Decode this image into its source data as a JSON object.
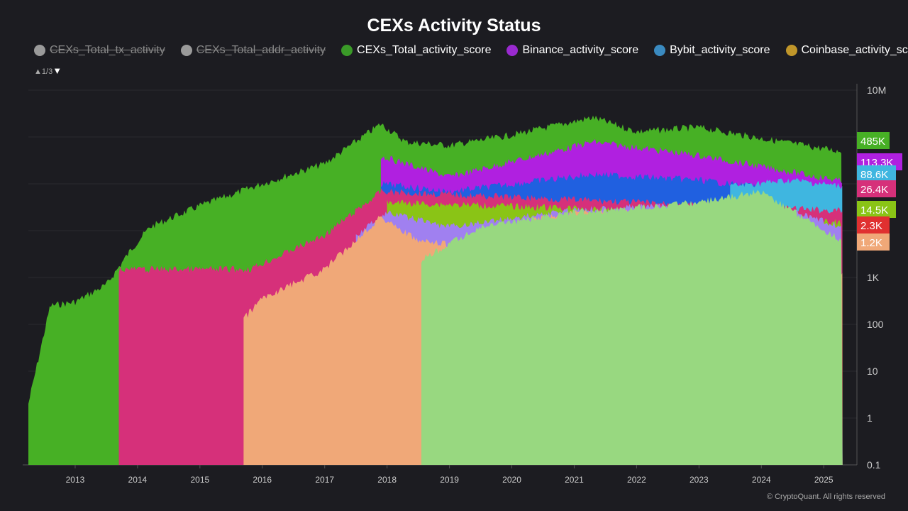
{
  "chart_data": {
    "type": "area",
    "title": "CEXs Activity Status",
    "y_scale": "log",
    "ylim": [
      0.1,
      10000000
    ],
    "y_ticks": [
      "10M",
      "1K",
      "100",
      "10",
      "1",
      "0.1"
    ],
    "y_tick_values": [
      10000000,
      1000,
      100,
      10,
      1,
      0.1
    ],
    "x_ticks": [
      "2013",
      "2014",
      "2015",
      "2016",
      "2017",
      "2018",
      "2019",
      "2020",
      "2021",
      "2022",
      "2023",
      "2024",
      "2025"
    ],
    "xlim": [
      2012.25,
      2025.35
    ],
    "grid": true,
    "legend_position": "top",
    "legend": [
      {
        "name": "CEXs_Total_tx_activity",
        "color": "#9a9a9a",
        "hidden": true
      },
      {
        "name": "CEXs_Total_addr_activity",
        "color": "#9a9a9a",
        "hidden": true
      },
      {
        "name": "CEXs_Total_activity_score",
        "color": "#3a9a28",
        "hidden": false
      },
      {
        "name": "Binance_activity_score",
        "color": "#9a2ad0",
        "hidden": false
      },
      {
        "name": "Bybit_activity_score",
        "color": "#3a8ac0",
        "hidden": false
      },
      {
        "name": "Coinbase_activity_score",
        "color": "#c0962a",
        "hidden": false
      }
    ],
    "legend_page": "1/3",
    "series": [
      {
        "color": "#47b025",
        "x": [
          2012.25,
          2012.6,
          2013,
          2013.5,
          2013.9,
          2014.2,
          2015,
          2016,
          2017,
          2017.9,
          2018.3,
          2019,
          2020,
          2021.3,
          2022,
          2023,
          2024,
          2025.3
        ],
        "values": [
          2,
          250,
          300,
          700,
          4000,
          12000,
          34000,
          100000,
          270000,
          1900000,
          780000,
          660000,
          1100000,
          2600000,
          1300000,
          1600000,
          930000,
          485000
        ]
      },
      {
        "color": "#b020e0",
        "x": [
          2017.9,
          2019,
          2021.3,
          2023,
          2025.3
        ],
        "values": [
          390000,
          140000,
          780000,
          400000,
          113300
        ]
      },
      {
        "color": "#2060e0",
        "x": [
          2017.9,
          2019,
          2021.3,
          2023,
          2025.3
        ],
        "values": [
          100000,
          68000,
          160000,
          120000,
          50000
        ]
      },
      {
        "color": "#3fb6e0",
        "x": [
          2023.5,
          2024.5,
          2025.3
        ],
        "values": [
          90000,
          120000,
          88600
        ]
      },
      {
        "color": "#d6307a",
        "x": [
          2013.7,
          2015.8,
          2017,
          2017.9,
          2025.3
        ],
        "values": [
          1500,
          1500,
          8000,
          68000,
          26400
        ]
      },
      {
        "color": "#8ac416",
        "x": [
          2018,
          2021,
          2025.3
        ],
        "values": [
          40000,
          30000,
          14500
        ]
      },
      {
        "color": "#e03030",
        "x": [
          2018,
          2025.3
        ],
        "values": [
          2500,
          2300
        ]
      },
      {
        "color": "#a080f0",
        "x": [
          2017.5,
          2018,
          2019,
          2021,
          2024,
          2025.3
        ],
        "values": [
          8000,
          24000,
          12000,
          28000,
          40000,
          12000
        ]
      },
      {
        "color": "#f0a878",
        "x": [
          2015.7,
          2016,
          2017,
          2017.9,
          2018.5,
          2019,
          2020,
          2021,
          2022,
          2023,
          2025.3
        ],
        "values": [
          130,
          360,
          1500,
          20000,
          6000,
          5000,
          14000,
          24000,
          24000,
          8000,
          1200
        ]
      },
      {
        "color": "#98d880",
        "x": [
          2018.55,
          2019.5,
          2021,
          2023,
          2024,
          2025.3
        ],
        "values": [
          2400,
          12000,
          24000,
          40000,
          68000,
          6000
        ]
      }
    ],
    "last_value_labels": [
      {
        "text": "485K",
        "color": "#47b025"
      },
      {
        "text": "113.3K",
        "color": "#b020e0"
      },
      {
        "text": "88.6K",
        "color": "#3fb6e0"
      },
      {
        "text": "26.4K",
        "color": "#d6307a"
      },
      {
        "text": "14.5K",
        "color": "#8ac416"
      },
      {
        "text": "2.3K",
        "color": "#e03030"
      },
      {
        "text": "1.2K",
        "color": "#f0a878"
      }
    ],
    "credit": "© CryptoQuant. All rights reserved"
  }
}
